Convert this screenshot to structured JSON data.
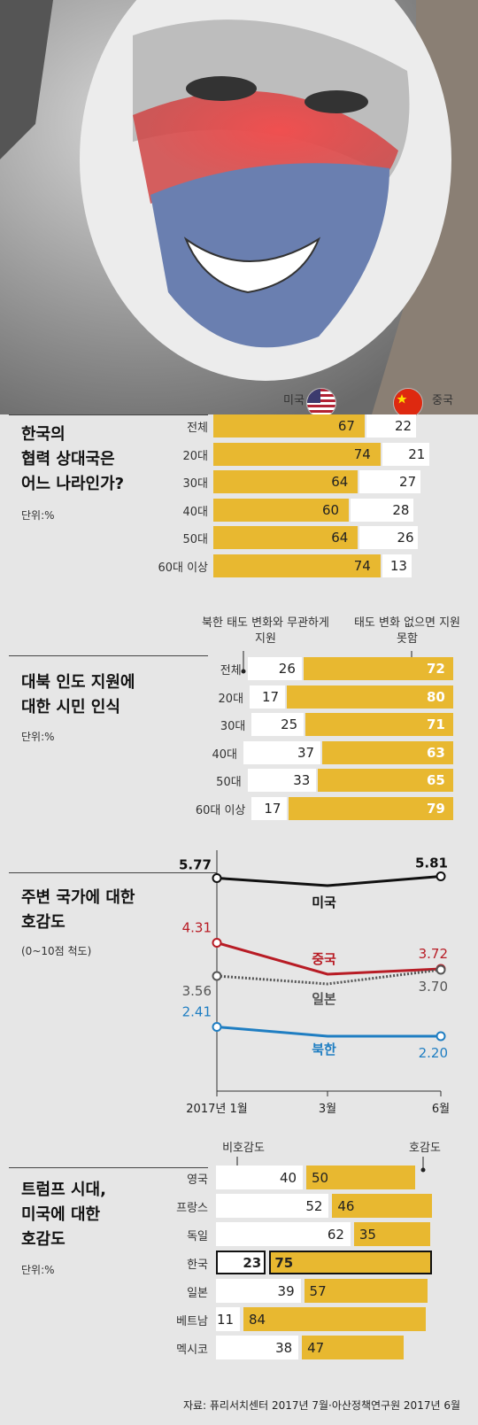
{
  "photo": {
    "description_icon": "face-painted-flag-photo"
  },
  "colors": {
    "yellow": "#e8b830",
    "white": "#ffffff",
    "us": "#111111",
    "china": "#b81c25",
    "japan": "#555555",
    "nkorea": "#1f7ec2"
  },
  "section1": {
    "title": "한국의\n협력 상대국은\n어느 나라인가?",
    "unit": "단위:%",
    "legend_left": "미국",
    "legend_right": "중국",
    "chart_data": {
      "type": "bar",
      "categories": [
        "전체",
        "20대",
        "30대",
        "40대",
        "50대",
        "60대 이상"
      ],
      "series": [
        {
          "name": "미국",
          "values": [
            67,
            74,
            64,
            60,
            64,
            74
          ]
        },
        {
          "name": "중국",
          "values": [
            22,
            21,
            27,
            28,
            26,
            13
          ]
        }
      ]
    }
  },
  "section2": {
    "title": "대북 인도 지원에\n대한 시민 인식",
    "unit": "단위:%",
    "legend_left": "북한 태도 변화와\n무관하게 지원",
    "legend_right": "태도 변화 없으면\n지원 못함",
    "chart_data": {
      "type": "bar",
      "categories": [
        "전체",
        "20대",
        "30대",
        "40대",
        "50대",
        "60대 이상"
      ],
      "series": [
        {
          "name": "북한 태도 변화와 무관하게 지원",
          "values": [
            26,
            17,
            25,
            37,
            33,
            17
          ]
        },
        {
          "name": "태도 변화 없으면 지원 못함",
          "values": [
            72,
            80,
            71,
            63,
            65,
            79
          ]
        }
      ]
    }
  },
  "section3": {
    "title": "주변 국가에 대한\n호감도",
    "unit": "(0~10점 척도)",
    "chart_data": {
      "type": "line",
      "x": [
        "2017년 1월",
        "3월",
        "6월"
      ],
      "series": [
        {
          "name": "미국",
          "values": [
            5.77,
            5.6,
            5.81
          ],
          "labels": [
            "5.77",
            "",
            "5.81"
          ]
        },
        {
          "name": "중국",
          "values": [
            4.31,
            3.6,
            3.72
          ],
          "labels": [
            "4.31",
            "",
            "3.72"
          ]
        },
        {
          "name": "일본",
          "values": [
            3.56,
            3.38,
            3.7
          ],
          "labels": [
            "3.56",
            "",
            "3.70"
          ]
        },
        {
          "name": "북한",
          "values": [
            2.41,
            2.2,
            2.2
          ],
          "labels": [
            "2.41",
            "",
            "2.20"
          ]
        }
      ]
    }
  },
  "section4": {
    "title": "트럼프 시대,\n미국에 대한\n호감도",
    "unit": "단위:%",
    "legend_left": "비호감도",
    "legend_right": "호감도",
    "chart_data": {
      "type": "bar",
      "categories": [
        "영국",
        "프랑스",
        "독일",
        "한국",
        "일본",
        "베트남",
        "멕시코"
      ],
      "series": [
        {
          "name": "비호감도",
          "values": [
            40,
            52,
            62,
            23,
            39,
            11,
            38
          ]
        },
        {
          "name": "호감도",
          "values": [
            50,
            46,
            35,
            75,
            57,
            84,
            47
          ]
        }
      ],
      "highlight": "한국"
    }
  },
  "source": "자료: 퓨리서치센터 2017년 7월·아산정책연구원 2017년 6월"
}
